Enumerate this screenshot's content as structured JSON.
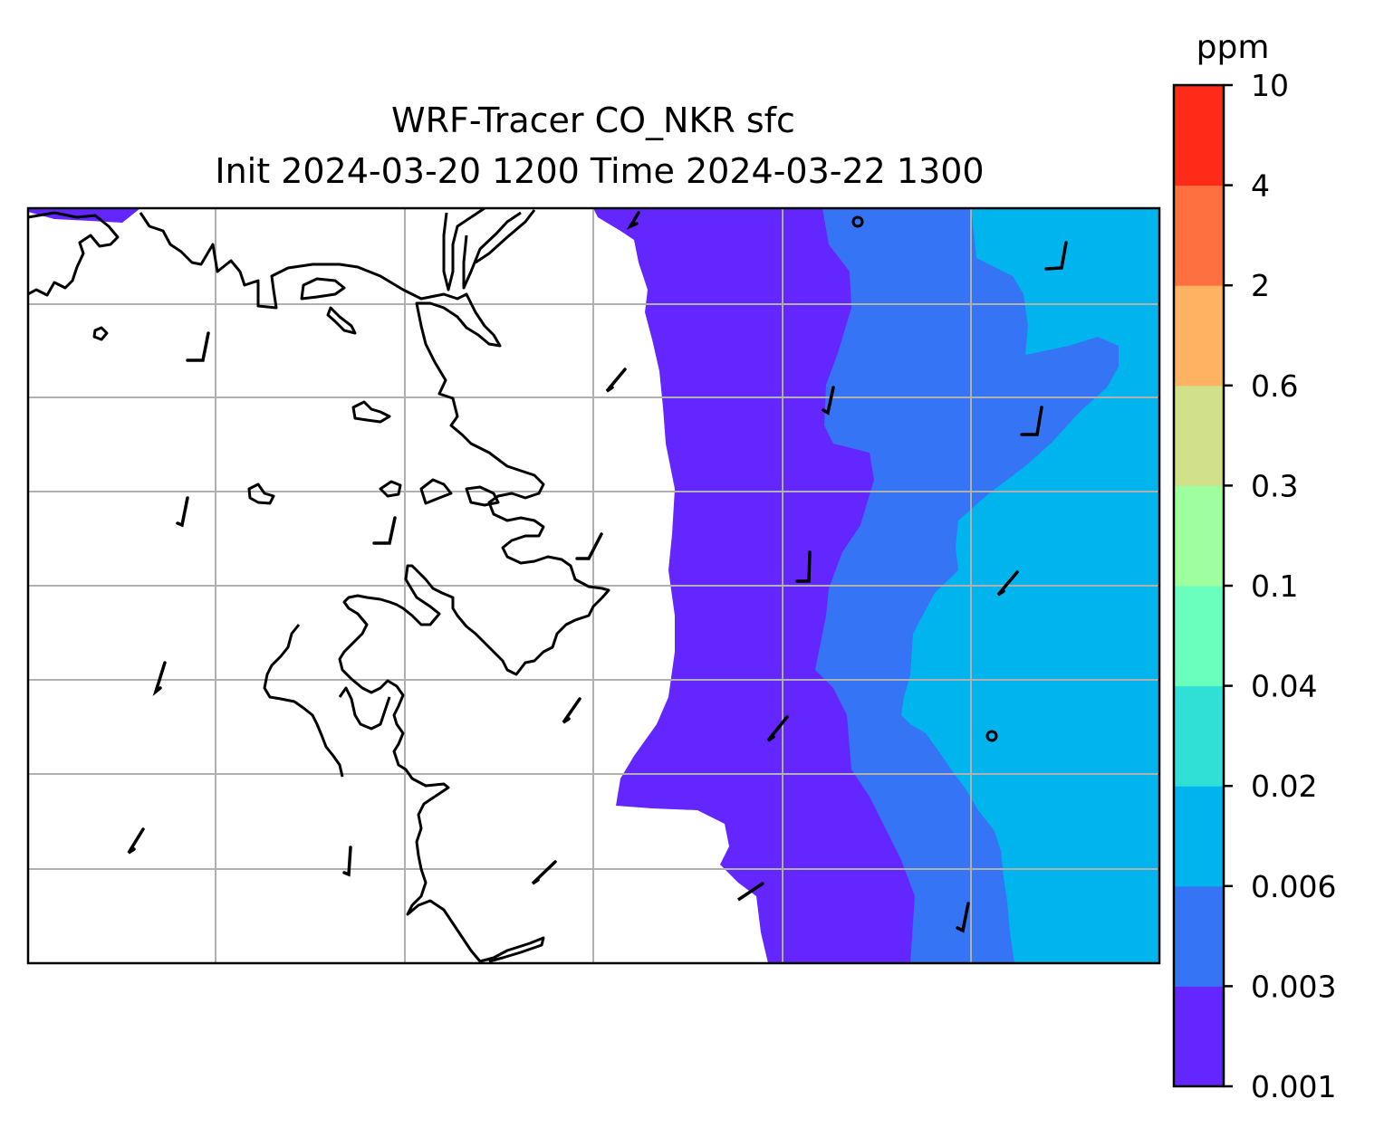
{
  "title": {
    "line1": "WRF-Tracer CO_NKR sfc",
    "line2": "Init 2024-03-20 1200 Time 2024-03-22 1300"
  },
  "colorbar": {
    "units": "ppm",
    "levels": [
      "0.001",
      "0.003",
      "0.006",
      "0.02",
      "0.04",
      "0.1",
      "0.3",
      "0.6",
      "2",
      "4",
      "10"
    ],
    "colors": [
      "#6426ff",
      "#3575f5",
      "#00b4ee",
      "#30dfd6",
      "#6bffbd",
      "#9eff9e",
      "#d0e18a",
      "#ffb262",
      "#ff7040",
      "#ff2a18"
    ]
  },
  "chart_data": {
    "type": "heatmap",
    "title": "WRF-Tracer CO_NKR sfc / Init 2024-03-20 1200 Time 2024-03-22 1300",
    "field": "surface CO tracer concentration (filled contours) with wind barbs and coastlines",
    "units": "ppm",
    "contour_levels": [
      0.001,
      0.003,
      0.006,
      0.02,
      0.04,
      0.1,
      0.3,
      0.6,
      2,
      4,
      10
    ],
    "bands_present": [
      "0.001-0.003",
      "0.003-0.006",
      "0.006-0.02"
    ],
    "pattern": "concentration increases from west to east; western half below 0.001 (unshaded)",
    "grid": true,
    "legend_position": "right colorbar"
  }
}
